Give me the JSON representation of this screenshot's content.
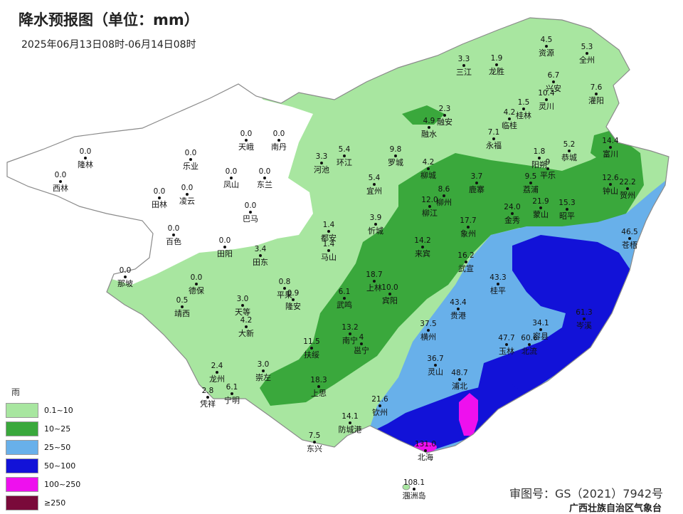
{
  "title": "降水预报图（单位：mm）",
  "subtitle": "2025年06月13日08时-06月14日08时",
  "legend": {
    "title": "雨",
    "items": [
      {
        "label": "0.1~10",
        "color": "#a8e6a0"
      },
      {
        "label": "10~25",
        "color": "#3aa83c"
      },
      {
        "label": "25~50",
        "color": "#68b0ea"
      },
      {
        "label": "50~100",
        "color": "#1212d8"
      },
      {
        "label": "100~250",
        "color": "#ee10ee"
      },
      {
        "label": "≥250",
        "color": "#7a0a3a"
      }
    ]
  },
  "approval": "审图号：GS（2021）7942号",
  "agency": "广西壮族自治区气象台",
  "stations": [
    {
      "name": "资源",
      "value": "4.5"
    },
    {
      "name": "全州",
      "value": "5.3"
    },
    {
      "name": "三江",
      "value": "3.3"
    },
    {
      "name": "龙胜",
      "value": "1.9"
    },
    {
      "name": "兴安",
      "value": "6.7"
    },
    {
      "name": "灌阳",
      "value": "7.6"
    },
    {
      "name": "灵川",
      "value": "10.4"
    },
    {
      "name": "桂林",
      "value": "1.5"
    },
    {
      "name": "临桂",
      "value": "4.2"
    },
    {
      "name": "融安",
      "value": "2.3"
    },
    {
      "name": "融水",
      "value": "4.9"
    },
    {
      "name": "永福",
      "value": "7.1"
    },
    {
      "name": "天峨",
      "value": "0.0"
    },
    {
      "name": "南丹",
      "value": "0.0"
    },
    {
      "name": "隆林",
      "value": "0.0"
    },
    {
      "name": "西林",
      "value": "0.0"
    },
    {
      "name": "乐业",
      "value": "0.0"
    },
    {
      "name": "凤山",
      "value": "0.0"
    },
    {
      "name": "东兰",
      "value": "0.0"
    },
    {
      "name": "田林",
      "value": "0.0"
    },
    {
      "name": "凌云",
      "value": "0.0"
    },
    {
      "name": "巴马",
      "value": "0.0"
    },
    {
      "name": "百色",
      "value": "0.0"
    },
    {
      "name": "田阳",
      "value": "0.0"
    },
    {
      "name": "田东",
      "value": "3.4"
    },
    {
      "name": "那坡",
      "value": "0.0"
    },
    {
      "name": "德保",
      "value": "0.0"
    },
    {
      "name": "靖西",
      "value": "0.5"
    },
    {
      "name": "河池",
      "value": "3.3"
    },
    {
      "name": "环江",
      "value": "5.4"
    },
    {
      "name": "罗城",
      "value": "9.8"
    },
    {
      "name": "柳城",
      "value": "4.2"
    },
    {
      "name": "宜州",
      "value": "5.4"
    },
    {
      "name": "柳州",
      "value": "8.6"
    },
    {
      "name": "柳江",
      "value": "12.0"
    },
    {
      "name": "鹿寨",
      "value": "3.7"
    },
    {
      "name": "阳朔",
      "value": "1.8"
    },
    {
      "name": "恭城",
      "value": "5.2"
    },
    {
      "name": "富川",
      "value": "14.4"
    },
    {
      "name": "平乐",
      "value": "9"
    },
    {
      "name": "荔浦",
      "value": "9.5"
    },
    {
      "name": "钟山",
      "value": "12.6"
    },
    {
      "name": "贺州",
      "value": "22.2"
    },
    {
      "name": "蒙山",
      "value": "21.9"
    },
    {
      "name": "昭平",
      "value": "15.3"
    },
    {
      "name": "金秀",
      "value": "24.0"
    },
    {
      "name": "象州",
      "value": "17.7"
    },
    {
      "name": "都安",
      "value": "1.4"
    },
    {
      "name": "马山",
      "value": "1.4"
    },
    {
      "name": "忻城",
      "value": "3.9"
    },
    {
      "name": "来宾",
      "value": "14.2"
    },
    {
      "name": "武宣",
      "value": "16.2"
    },
    {
      "name": "苍梧",
      "value": "46.5"
    },
    {
      "name": "平果",
      "value": "0.8"
    },
    {
      "name": "隆安",
      "value": "0.9"
    },
    {
      "name": "天等",
      "value": "3.0"
    },
    {
      "name": "大新",
      "value": "4.2"
    },
    {
      "name": "上林",
      "value": "18.7"
    },
    {
      "name": "宾阳",
      "value": "10.0"
    },
    {
      "name": "武鸣",
      "value": "6.1"
    },
    {
      "name": "桂平",
      "value": "43.3"
    },
    {
      "name": "贵港",
      "value": "43.4"
    },
    {
      "name": "南宁",
      "value": "13.2"
    },
    {
      "name": "邕宁",
      "value": "4"
    },
    {
      "name": "横州",
      "value": "37.5"
    },
    {
      "name": "岑溪",
      "value": "61.3"
    },
    {
      "name": "容县",
      "value": "34.1"
    },
    {
      "name": "玉林",
      "value": "47.7"
    },
    {
      "name": "北流",
      "value": "60.6"
    },
    {
      "name": "扶绥",
      "value": "11.5"
    },
    {
      "name": "崇左",
      "value": "3.0"
    },
    {
      "name": "龙州",
      "value": "2.4"
    },
    {
      "name": "宁明",
      "value": "6.1"
    },
    {
      "name": "凭祥",
      "value": "2.8"
    },
    {
      "name": "上思",
      "value": "18.3"
    },
    {
      "name": "灵山",
      "value": "36.7"
    },
    {
      "name": "浦北",
      "value": "48.7"
    },
    {
      "name": "钦州",
      "value": "21.6"
    },
    {
      "name": "防城港",
      "value": "14.1"
    },
    {
      "name": "东兴",
      "value": "7.5"
    },
    {
      "name": "北海",
      "value": "131.0"
    },
    {
      "name": "涠洲岛",
      "value": "108.1"
    }
  ]
}
